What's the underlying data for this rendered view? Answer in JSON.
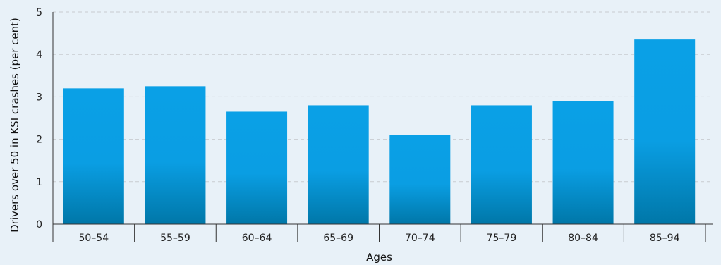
{
  "chart_data": {
    "type": "bar",
    "categories": [
      "50–54",
      "55–59",
      "60–64",
      "65–69",
      "70–74",
      "75–79",
      "80–84",
      "85–94"
    ],
    "values": [
      3.2,
      3.25,
      2.65,
      2.8,
      2.1,
      2.8,
      2.9,
      4.35
    ],
    "xlabel": "Ages",
    "ylabel": "Drivers over 50 in KSI crashes (per cent)",
    "ylim": [
      0,
      5
    ],
    "yticks": [
      "0",
      "1",
      "2",
      "3",
      "4",
      "5"
    ],
    "grid": true,
    "bar_color_top": "#0aa0e6",
    "bar_color_bottom": "#0077a8"
  }
}
